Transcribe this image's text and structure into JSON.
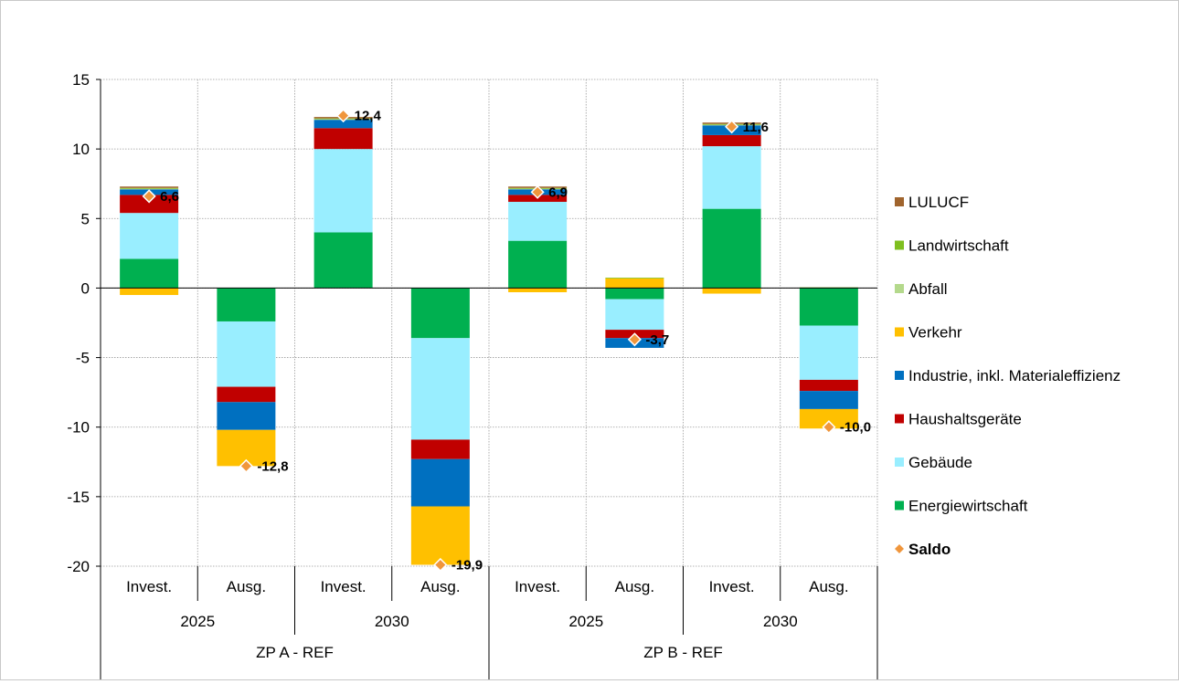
{
  "chart_data": {
    "type": "bar",
    "stacked": true,
    "ylim": [
      -20,
      15
    ],
    "yticks": [
      15,
      10,
      5,
      0,
      -5,
      -10,
      -15,
      -20
    ],
    "grid": true,
    "legend_position": "right",
    "groups": [
      {
        "label": "ZP A - REF",
        "years": [
          {
            "label": "2025"
          },
          {
            "label": "2030"
          }
        ]
      },
      {
        "label": "ZP B - REF",
        "years": [
          {
            "label": "2025"
          },
          {
            "label": "2030"
          }
        ]
      }
    ],
    "categories": [
      "Invest.",
      "Ausg.",
      "Invest.",
      "Ausg.",
      "Invest.",
      "Ausg.",
      "Invest.",
      "Ausg."
    ],
    "series": [
      {
        "name": "Energiewirtschaft",
        "color": "#00b050",
        "values": [
          2.1,
          -2.4,
          4.0,
          -3.6,
          3.4,
          -0.8,
          5.7,
          -2.7
        ]
      },
      {
        "name": "Gebäude",
        "color": "#99eeff",
        "values": [
          3.3,
          -4.7,
          6.0,
          -7.3,
          2.8,
          -2.2,
          4.5,
          -3.9
        ]
      },
      {
        "name": "Haushaltsgeräte",
        "color": "#c00000",
        "values": [
          1.3,
          -1.1,
          1.5,
          -1.4,
          0.5,
          -0.6,
          0.8,
          -0.8
        ]
      },
      {
        "name": "Industrie, inkl. Materialeffizienz",
        "color": "#0070c0",
        "values": [
          0.4,
          -2.0,
          0.6,
          -3.4,
          0.4,
          -0.7,
          0.7,
          -1.3
        ]
      },
      {
        "name": "Verkehr",
        "color": "#ffc000",
        "values": [
          -0.5,
          -2.6,
          0.0,
          -4.2,
          -0.3,
          0.7,
          -0.4,
          -1.4
        ]
      },
      {
        "name": "Abfall",
        "color": "#b4d98c",
        "values": [
          0.05,
          0.0,
          0.05,
          0.0,
          0.05,
          0.0,
          0.05,
          0.0
        ]
      },
      {
        "name": "Landwirtschaft",
        "color": "#7fbf1f",
        "values": [
          0.05,
          0.0,
          0.05,
          0.0,
          0.05,
          0.05,
          0.05,
          0.05
        ]
      },
      {
        "name": "LULUCF",
        "color": "#a0642d",
        "values": [
          0.1,
          0.0,
          0.1,
          0.0,
          0.1,
          0.0,
          0.1,
          0.0
        ]
      }
    ],
    "saldo": {
      "name": "Saldo",
      "color": "#f0963c",
      "values": [
        6.6,
        -12.8,
        12.4,
        -19.9,
        6.9,
        -3.7,
        11.6,
        -10.0
      ],
      "labels": [
        "6,6",
        "-12,8",
        "12,4",
        "-19,9",
        "6,9",
        "-3,7",
        "11,6",
        "-10,0"
      ]
    },
    "legend_order": [
      "LULUCF",
      "Landwirtschaft",
      "Abfall",
      "Verkehr",
      "Industrie, inkl. Materialeffizienz",
      "Haushaltsgeräte",
      "Gebäude",
      "Energiewirtschaft",
      "Saldo"
    ]
  }
}
